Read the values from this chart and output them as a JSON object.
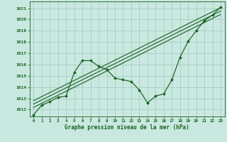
{
  "title": "Graphe pression niveau de la mer (hPa)",
  "bg_color": "#c8e8e0",
  "grid_color": "#a0c8c0",
  "line_color": "#1a6020",
  "xlim": [
    -0.5,
    23.5
  ],
  "ylim": [
    1011.4,
    1021.6
  ],
  "yticks": [
    1012,
    1013,
    1014,
    1015,
    1016,
    1017,
    1018,
    1019,
    1020,
    1021
  ],
  "xticks": [
    0,
    1,
    2,
    3,
    4,
    5,
    6,
    7,
    8,
    9,
    10,
    11,
    12,
    13,
    14,
    15,
    16,
    17,
    18,
    19,
    20,
    21,
    22,
    23
  ],
  "main_line_x": [
    0,
    1,
    2,
    3,
    4,
    5,
    6,
    7,
    8,
    9,
    10,
    11,
    12,
    13,
    14,
    15,
    16,
    17,
    18,
    19,
    20,
    21,
    22,
    23
  ],
  "main_line_y": [
    1011.55,
    1012.4,
    1012.7,
    1013.1,
    1013.2,
    1015.3,
    1016.35,
    1016.35,
    1015.85,
    1015.55,
    1014.8,
    1014.65,
    1014.5,
    1013.75,
    1012.6,
    1013.2,
    1013.4,
    1014.65,
    1016.65,
    1018.05,
    1019.0,
    1019.9,
    1020.4,
    1021.1
  ],
  "line2_x": [
    0,
    23
  ],
  "line2_y": [
    1012.2,
    1020.45
  ],
  "line3_x": [
    0,
    23
  ],
  "line3_y": [
    1012.5,
    1020.75
  ],
  "line4_x": [
    0,
    23
  ],
  "line4_y": [
    1012.8,
    1021.05
  ]
}
